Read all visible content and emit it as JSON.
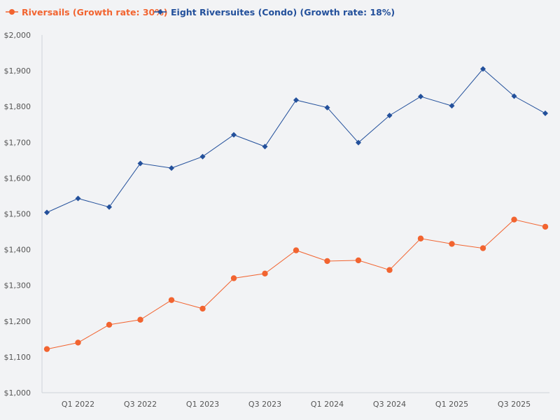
{
  "chart_data": {
    "type": "line",
    "title": "",
    "xlabel": "",
    "ylabel": "",
    "ylim": [
      1000,
      2000
    ],
    "y_ticks": [
      1000,
      1100,
      1200,
      1300,
      1400,
      1500,
      1600,
      1700,
      1800,
      1900,
      2000
    ],
    "y_tick_labels": [
      "$1,000",
      "$1,100",
      "$1,200",
      "$1,300",
      "$1,400",
      "$1,500",
      "$1,600",
      "$1,700",
      "$1,800",
      "$1,900",
      "$2,000"
    ],
    "categories": [
      "Q4 2021",
      "Q1 2022",
      "Q2 2022",
      "Q3 2022",
      "Q4 2022",
      "Q1 2023",
      "Q2 2023",
      "Q3 2023",
      "Q4 2023",
      "Q1 2024",
      "Q2 2024",
      "Q3 2024",
      "Q4 2024",
      "Q1 2025",
      "Q2 2025",
      "Q3 2025",
      "Q4 2025"
    ],
    "x_tick_labels": [
      "Q1 2022",
      "Q3 2022",
      "Q1 2023",
      "Q3 2023",
      "Q1 2024",
      "Q3 2024",
      "Q1 2025",
      "Q3 2025"
    ],
    "grid": false,
    "legend_position": "top-left",
    "series": [
      {
        "name": "Riversails (Growth rate: 30%)",
        "color": "#f26430",
        "marker": "circle",
        "values": [
          1122,
          1140,
          1190,
          1204,
          1259,
          1235,
          1320,
          1333,
          1398,
          1368,
          1370,
          1343,
          1431,
          1416,
          1404,
          1484,
          1464
        ]
      },
      {
        "name": "Eight Riversuites (Condo) (Growth rate: 18%)",
        "color": "#23509b",
        "marker": "diamond",
        "values": [
          1504,
          1543,
          1519,
          1641,
          1628,
          1660,
          1721,
          1688,
          1818,
          1797,
          1699,
          1775,
          1828,
          1802,
          1905,
          1829,
          1781
        ]
      }
    ]
  }
}
